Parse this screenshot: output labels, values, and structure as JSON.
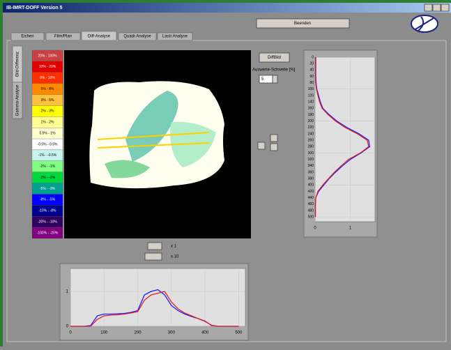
{
  "window": {
    "title": "IB-IMRT-DOFF Version 5"
  },
  "buttons": {
    "quit": "Beenden",
    "diff_image": "DiffBild"
  },
  "tabs": [
    "Eichen",
    "Film/Plan",
    "Diff-Analyse",
    "Quadr.Analyse",
    "Lastr.Analyse"
  ],
  "side_tabs": [
    "Bild-Differenz",
    "Gamma-Analyse"
  ],
  "legend": [
    {
      "label": "20% - 100%",
      "color": "#c84040"
    },
    {
      "label": "10% - 20%",
      "color": "#e00000"
    },
    {
      "label": "8% - 10%",
      "color": "#ff3000"
    },
    {
      "label": "5% - 8%",
      "color": "#ff8a00"
    },
    {
      "label": "3% - 5%",
      "color": "#ffc040"
    },
    {
      "label": "2% - 3%",
      "color": "#ffff00"
    },
    {
      "label": "1% - 2%",
      "color": "#ffff90"
    },
    {
      "label": "0.5% - 1%",
      "color": "#ffffd0"
    },
    {
      "label": "-0.5% - 0.5%",
      "color": "#ffffff"
    },
    {
      "label": "-1% - -0.5%",
      "color": "#c8f4f0"
    },
    {
      "label": "-2% - -1%",
      "color": "#80ff80"
    },
    {
      "label": "-3% - -2%",
      "color": "#00d840"
    },
    {
      "label": "-5% - -3%",
      "color": "#00a090"
    },
    {
      "label": "-8% - -5%",
      "color": "#0000ff"
    },
    {
      "label": "-10% - -8%",
      "color": "#000090"
    },
    {
      "label": "-20% - -10%",
      "color": "#300060"
    },
    {
      "label": "-100% - -20%",
      "color": "#800080"
    }
  ],
  "threshold": {
    "label": "Auswerte-Schwelle [%]",
    "value": "5"
  },
  "zoom_labels": [
    "x 1",
    "x 10"
  ],
  "chart_data": [
    {
      "type": "line",
      "orientation": "vertical",
      "x": [
        0,
        20,
        40,
        60,
        80,
        100,
        120,
        140,
        160,
        180,
        200,
        220,
        240,
        260,
        280,
        300,
        320,
        340,
        360,
        380,
        400,
        420,
        440,
        460,
        480,
        500
      ],
      "xlim": [
        0,
        515
      ],
      "xticks": [
        0,
        20,
        40,
        60,
        80,
        100,
        120,
        140,
        160,
        180,
        200,
        220,
        240,
        260,
        280,
        300,
        320,
        340,
        360,
        380,
        400,
        420,
        440,
        460,
        480,
        500
      ],
      "ylim": [
        0,
        1.7
      ],
      "yticks": [
        0,
        1
      ],
      "grid": true,
      "series": [
        {
          "color": "#2020ff",
          "values": [
            0.02,
            0.02,
            0.02,
            0.02,
            0.03,
            0.05,
            0.1,
            0.15,
            0.22,
            0.4,
            0.62,
            0.9,
            1.25,
            1.52,
            1.55,
            1.3,
            1.0,
            0.78,
            0.58,
            0.4,
            0.25,
            0.1,
            0.02,
            0.01,
            0.01,
            0.01
          ]
        },
        {
          "color": "#e02020",
          "values": [
            0.01,
            0.01,
            0.01,
            0.01,
            0.02,
            0.04,
            0.08,
            0.13,
            0.2,
            0.37,
            0.58,
            0.85,
            1.2,
            1.48,
            1.52,
            1.28,
            0.95,
            0.74,
            0.55,
            0.38,
            0.22,
            0.08,
            0.02,
            0.01,
            0.01,
            0.01
          ]
        }
      ]
    },
    {
      "type": "line",
      "orientation": "horizontal",
      "x": [
        0,
        20,
        40,
        60,
        80,
        100,
        120,
        140,
        160,
        180,
        200,
        220,
        240,
        260,
        280,
        300,
        320,
        340,
        360,
        380,
        400,
        420,
        440,
        460,
        480,
        500
      ],
      "xlim": [
        0,
        520
      ],
      "xticks": [
        0,
        100,
        200,
        300,
        400,
        500
      ],
      "ylim": [
        0,
        1.66
      ],
      "yticks": [
        0,
        1
      ],
      "grid": true,
      "series": [
        {
          "color": "#2020ff",
          "values": [
            0,
            0,
            0,
            0.02,
            0.3,
            0.35,
            0.35,
            0.36,
            0.37,
            0.4,
            0.45,
            0.9,
            1.0,
            1.05,
            0.9,
            0.6,
            0.45,
            0.35,
            0.28,
            0.22,
            0.15,
            0.02,
            0,
            0,
            0,
            0
          ]
        },
        {
          "color": "#e02020",
          "values": [
            0,
            0,
            0,
            0,
            0.2,
            0.3,
            0.32,
            0.33,
            0.35,
            0.38,
            0.42,
            0.75,
            0.9,
            0.95,
            1.0,
            0.7,
            0.5,
            0.38,
            0.3,
            0.22,
            0.14,
            0.03,
            0,
            0,
            0,
            0
          ]
        }
      ]
    }
  ]
}
